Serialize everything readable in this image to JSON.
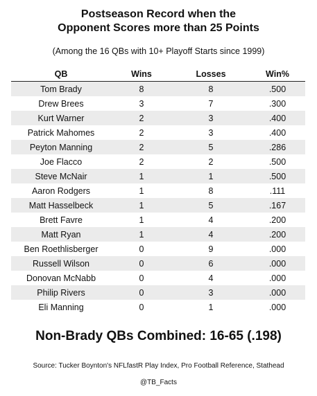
{
  "title_line1": "Postseason Record when the",
  "title_line2": "Opponent Scores more than 25 Points",
  "subtitle": "(Among the 16 QBs with 10+ Playoff Starts since 1999)",
  "table": {
    "headers": [
      "QB",
      "Wins",
      "Losses",
      "Win%"
    ],
    "rows": [
      {
        "qb": "Tom Brady",
        "wins": "8",
        "losses": "8",
        "pct": ".500"
      },
      {
        "qb": "Drew Brees",
        "wins": "3",
        "losses": "7",
        "pct": ".300"
      },
      {
        "qb": "Kurt Warner",
        "wins": "2",
        "losses": "3",
        "pct": ".400"
      },
      {
        "qb": "Patrick Mahomes",
        "wins": "2",
        "losses": "3",
        "pct": ".400"
      },
      {
        "qb": "Peyton Manning",
        "wins": "2",
        "losses": "5",
        "pct": ".286"
      },
      {
        "qb": "Joe Flacco",
        "wins": "2",
        "losses": "2",
        "pct": ".500"
      },
      {
        "qb": "Steve McNair",
        "wins": "1",
        "losses": "1",
        "pct": ".500"
      },
      {
        "qb": "Aaron Rodgers",
        "wins": "1",
        "losses": "8",
        "pct": ".111"
      },
      {
        "qb": "Matt Hasselbeck",
        "wins": "1",
        "losses": "5",
        "pct": ".167"
      },
      {
        "qb": "Brett Favre",
        "wins": "1",
        "losses": "4",
        "pct": ".200"
      },
      {
        "qb": "Matt Ryan",
        "wins": "1",
        "losses": "4",
        "pct": ".200"
      },
      {
        "qb": "Ben Roethlisberger",
        "wins": "0",
        "losses": "9",
        "pct": ".000"
      },
      {
        "qb": "Russell Wilson",
        "wins": "0",
        "losses": "6",
        "pct": ".000"
      },
      {
        "qb": "Donovan McNabb",
        "wins": "0",
        "losses": "4",
        "pct": ".000"
      },
      {
        "qb": "Philip Rivers",
        "wins": "0",
        "losses": "3",
        "pct": ".000"
      },
      {
        "qb": "Eli Manning",
        "wins": "0",
        "losses": "1",
        "pct": ".000"
      }
    ]
  },
  "summary": "Non-Brady QBs Combined: 16-65 (.198)",
  "source": "Source: Tucker Boynton's NFLfastR Play Index, Pro Football Reference, Stathead",
  "handle": "@TB_Facts",
  "colors": {
    "stripe": "#ebebeb",
    "text": "#111111",
    "background": "#ffffff"
  }
}
